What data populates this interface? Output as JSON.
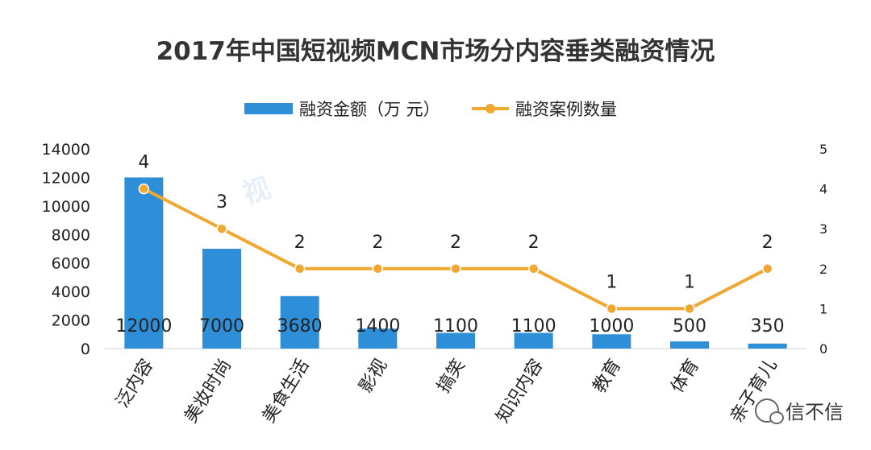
{
  "title": "2017年中国短视频MCN市场分内容垂类融资情况",
  "watermark": "视",
  "brand": {
    "name": "信不信",
    "icon": "wechat-icon"
  },
  "colors": {
    "bar": "#2e8fd8",
    "line": "#f0a830",
    "text": "#222222"
  },
  "chart_data": {
    "type": "bar",
    "title": "2017年中国短视频MCN市场分内容垂类融资情况",
    "categories": [
      "泛内容",
      "美妆时尚",
      "美食生活",
      "影视",
      "搞笑",
      "知识内容",
      "教育",
      "体育",
      "亲子育儿"
    ],
    "series": [
      {
        "name": "融资金额（万 元）",
        "type": "bar",
        "axis": "left",
        "values": [
          12000,
          7000,
          3680,
          1400,
          1100,
          1100,
          1000,
          500,
          350
        ]
      },
      {
        "name": "融资案例数量",
        "type": "line",
        "axis": "right",
        "values": [
          4,
          3,
          2,
          2,
          2,
          2,
          1,
          1,
          2
        ]
      }
    ],
    "ylim": [
      0,
      14000
    ],
    "yticks": [
      0,
      2000,
      4000,
      6000,
      8000,
      10000,
      12000,
      14000
    ],
    "y2lim": [
      0,
      5
    ],
    "y2ticks": [
      0,
      1,
      2,
      3,
      4,
      5
    ],
    "xlabel": "",
    "ylabel": "",
    "grid": false,
    "legend": "top-center"
  }
}
